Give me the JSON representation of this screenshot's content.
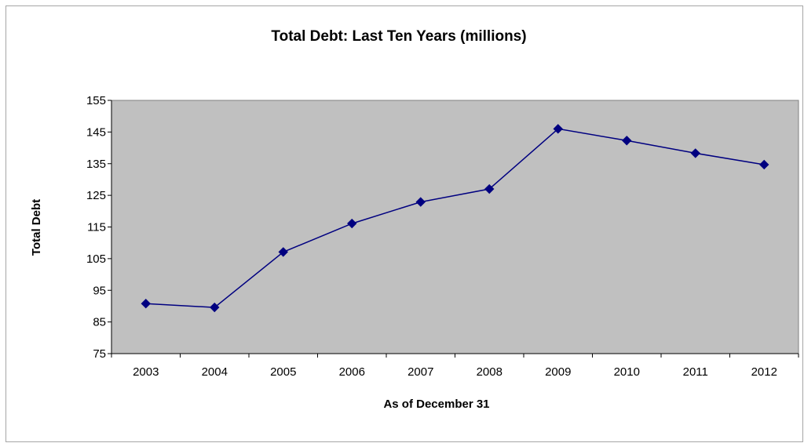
{
  "chart_data": {
    "type": "line",
    "title": "Total Debt: Last Ten Years (millions)",
    "xlabel": "As of December 31",
    "ylabel": "Total Debt",
    "categories": [
      "2003",
      "2004",
      "2005",
      "2006",
      "2007",
      "2008",
      "2009",
      "2010",
      "2011",
      "2012"
    ],
    "values": [
      90.8,
      89.6,
      107.1,
      116.1,
      122.9,
      127.0,
      146.0,
      142.3,
      138.3,
      134.7
    ],
    "ylim": [
      75,
      155
    ],
    "yticks": [
      75,
      85,
      95,
      105,
      115,
      125,
      135,
      145,
      155
    ],
    "grid": false,
    "legend": "none",
    "plot_background": "#c0c0c0",
    "line_color": "#000080",
    "marker_color": "#000080",
    "marker": "diamond"
  }
}
